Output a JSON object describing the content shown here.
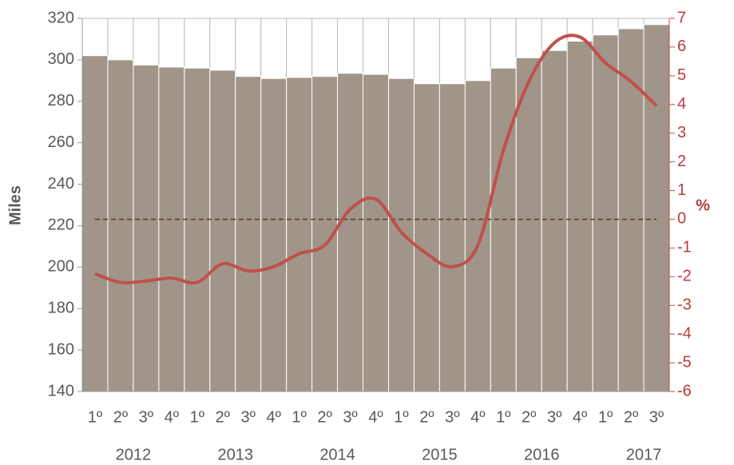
{
  "chart_data": {
    "type": "bar_line",
    "categories": [
      "1º",
      "2º",
      "3º",
      "4º",
      "1º",
      "2º",
      "3º",
      "4º",
      "1º",
      "2º",
      "3º",
      "4º",
      "1º",
      "2º",
      "3º",
      "4º",
      "1º",
      "2º",
      "3º",
      "4º",
      "1º",
      "2º",
      "3º"
    ],
    "years": [
      "2012",
      "2013",
      "2014",
      "2015",
      "2016",
      "2017"
    ],
    "ylabel": "Miles",
    "y2label": "%",
    "series": [
      {
        "type": "bar",
        "color": "#a09588",
        "values": [
          302,
          300,
          297.5,
          296.5,
          296,
          295,
          292,
          291,
          291.5,
          292,
          293.5,
          293,
          291,
          288.5,
          288.5,
          290,
          296,
          301,
          304.5,
          309,
          312,
          315,
          317
        ]
      },
      {
        "type": "line",
        "axis": "y2",
        "color": "#c0504d",
        "values": [
          -1.9,
          -2.2,
          -2.15,
          -2.05,
          -2.2,
          -1.55,
          -1.8,
          -1.65,
          -1.2,
          -0.9,
          0.35,
          0.7,
          -0.45,
          -1.2,
          -1.65,
          -0.9,
          2.4,
          4.8,
          6.15,
          6.35,
          5.45,
          4.8,
          3.95
        ]
      }
    ],
    "y2_reference_line": 0,
    "ylim": [
      140,
      320
    ],
    "yticks": [
      140,
      160,
      180,
      200,
      220,
      240,
      260,
      280,
      300,
      320
    ],
    "y2lim": [
      -6,
      7
    ],
    "y2ticks": [
      -6,
      -5,
      -4,
      -3,
      -2,
      -1,
      0,
      1,
      2,
      3,
      4,
      5,
      6,
      7
    ]
  }
}
